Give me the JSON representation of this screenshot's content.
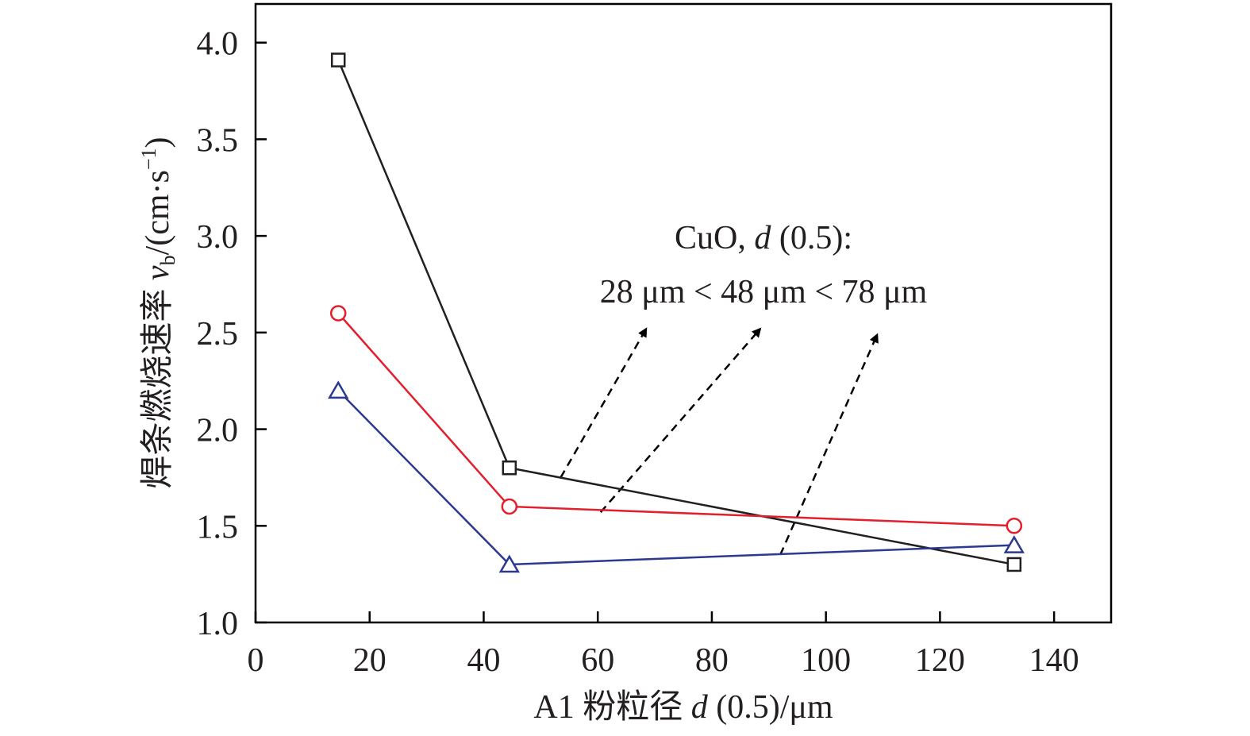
{
  "chart_data": {
    "type": "line",
    "x_axis": {
      "title_prefix": "A1 粉粒径 ",
      "title_var": "d",
      "title_suffix": " (0.5)/μm",
      "min": 0,
      "max": 150,
      "ticks": [
        0,
        20,
        40,
        60,
        80,
        100,
        120,
        140
      ],
      "tick_labels": [
        "0",
        "20",
        "40",
        "60",
        "80",
        "100",
        "120",
        "140"
      ]
    },
    "y_axis": {
      "title_prefix": "焊条燃烧速率 ",
      "title_var": "v",
      "title_sub": "b",
      "title_suffix": "/(cm·s",
      "title_sup": "−1",
      "title_close": ")",
      "min": 1.0,
      "max": 4.2,
      "ticks": [
        1.0,
        1.5,
        2.0,
        2.5,
        3.0,
        3.5,
        4.0
      ],
      "tick_labels": [
        "1.0",
        "1.5",
        "2.0",
        "2.5",
        "3.0",
        "3.5",
        "4.0"
      ]
    },
    "series": [
      {
        "marker": "square",
        "color": "#231f20",
        "x": [
          14.5,
          44.5,
          133
        ],
        "y": [
          3.91,
          1.8,
          1.3
        ]
      },
      {
        "marker": "circle",
        "color": "#e31e2d",
        "x": [
          14.5,
          44.5,
          133
        ],
        "y": [
          2.6,
          1.6,
          1.5
        ]
      },
      {
        "marker": "triangle",
        "color": "#2b3990",
        "x": [
          14.5,
          44.5,
          133
        ],
        "y": [
          2.2,
          1.3,
          1.4
        ]
      }
    ],
    "annotation": {
      "line1_prefix": "CuO, ",
      "line1_var": "d",
      "line1_suffix": " (0.5):",
      "line2": "28 μm < 48 μm < 78 μm"
    },
    "arrows": [
      {
        "from": [
          53.5,
          1.75
        ],
        "to": [
          68.5,
          2.52
        ]
      },
      {
        "from": [
          60.5,
          1.57
        ],
        "to": [
          88.5,
          2.52
        ]
      },
      {
        "from": [
          92,
          1.35
        ],
        "to": [
          109,
          2.49
        ]
      }
    ],
    "grid": false,
    "legend": "none"
  }
}
